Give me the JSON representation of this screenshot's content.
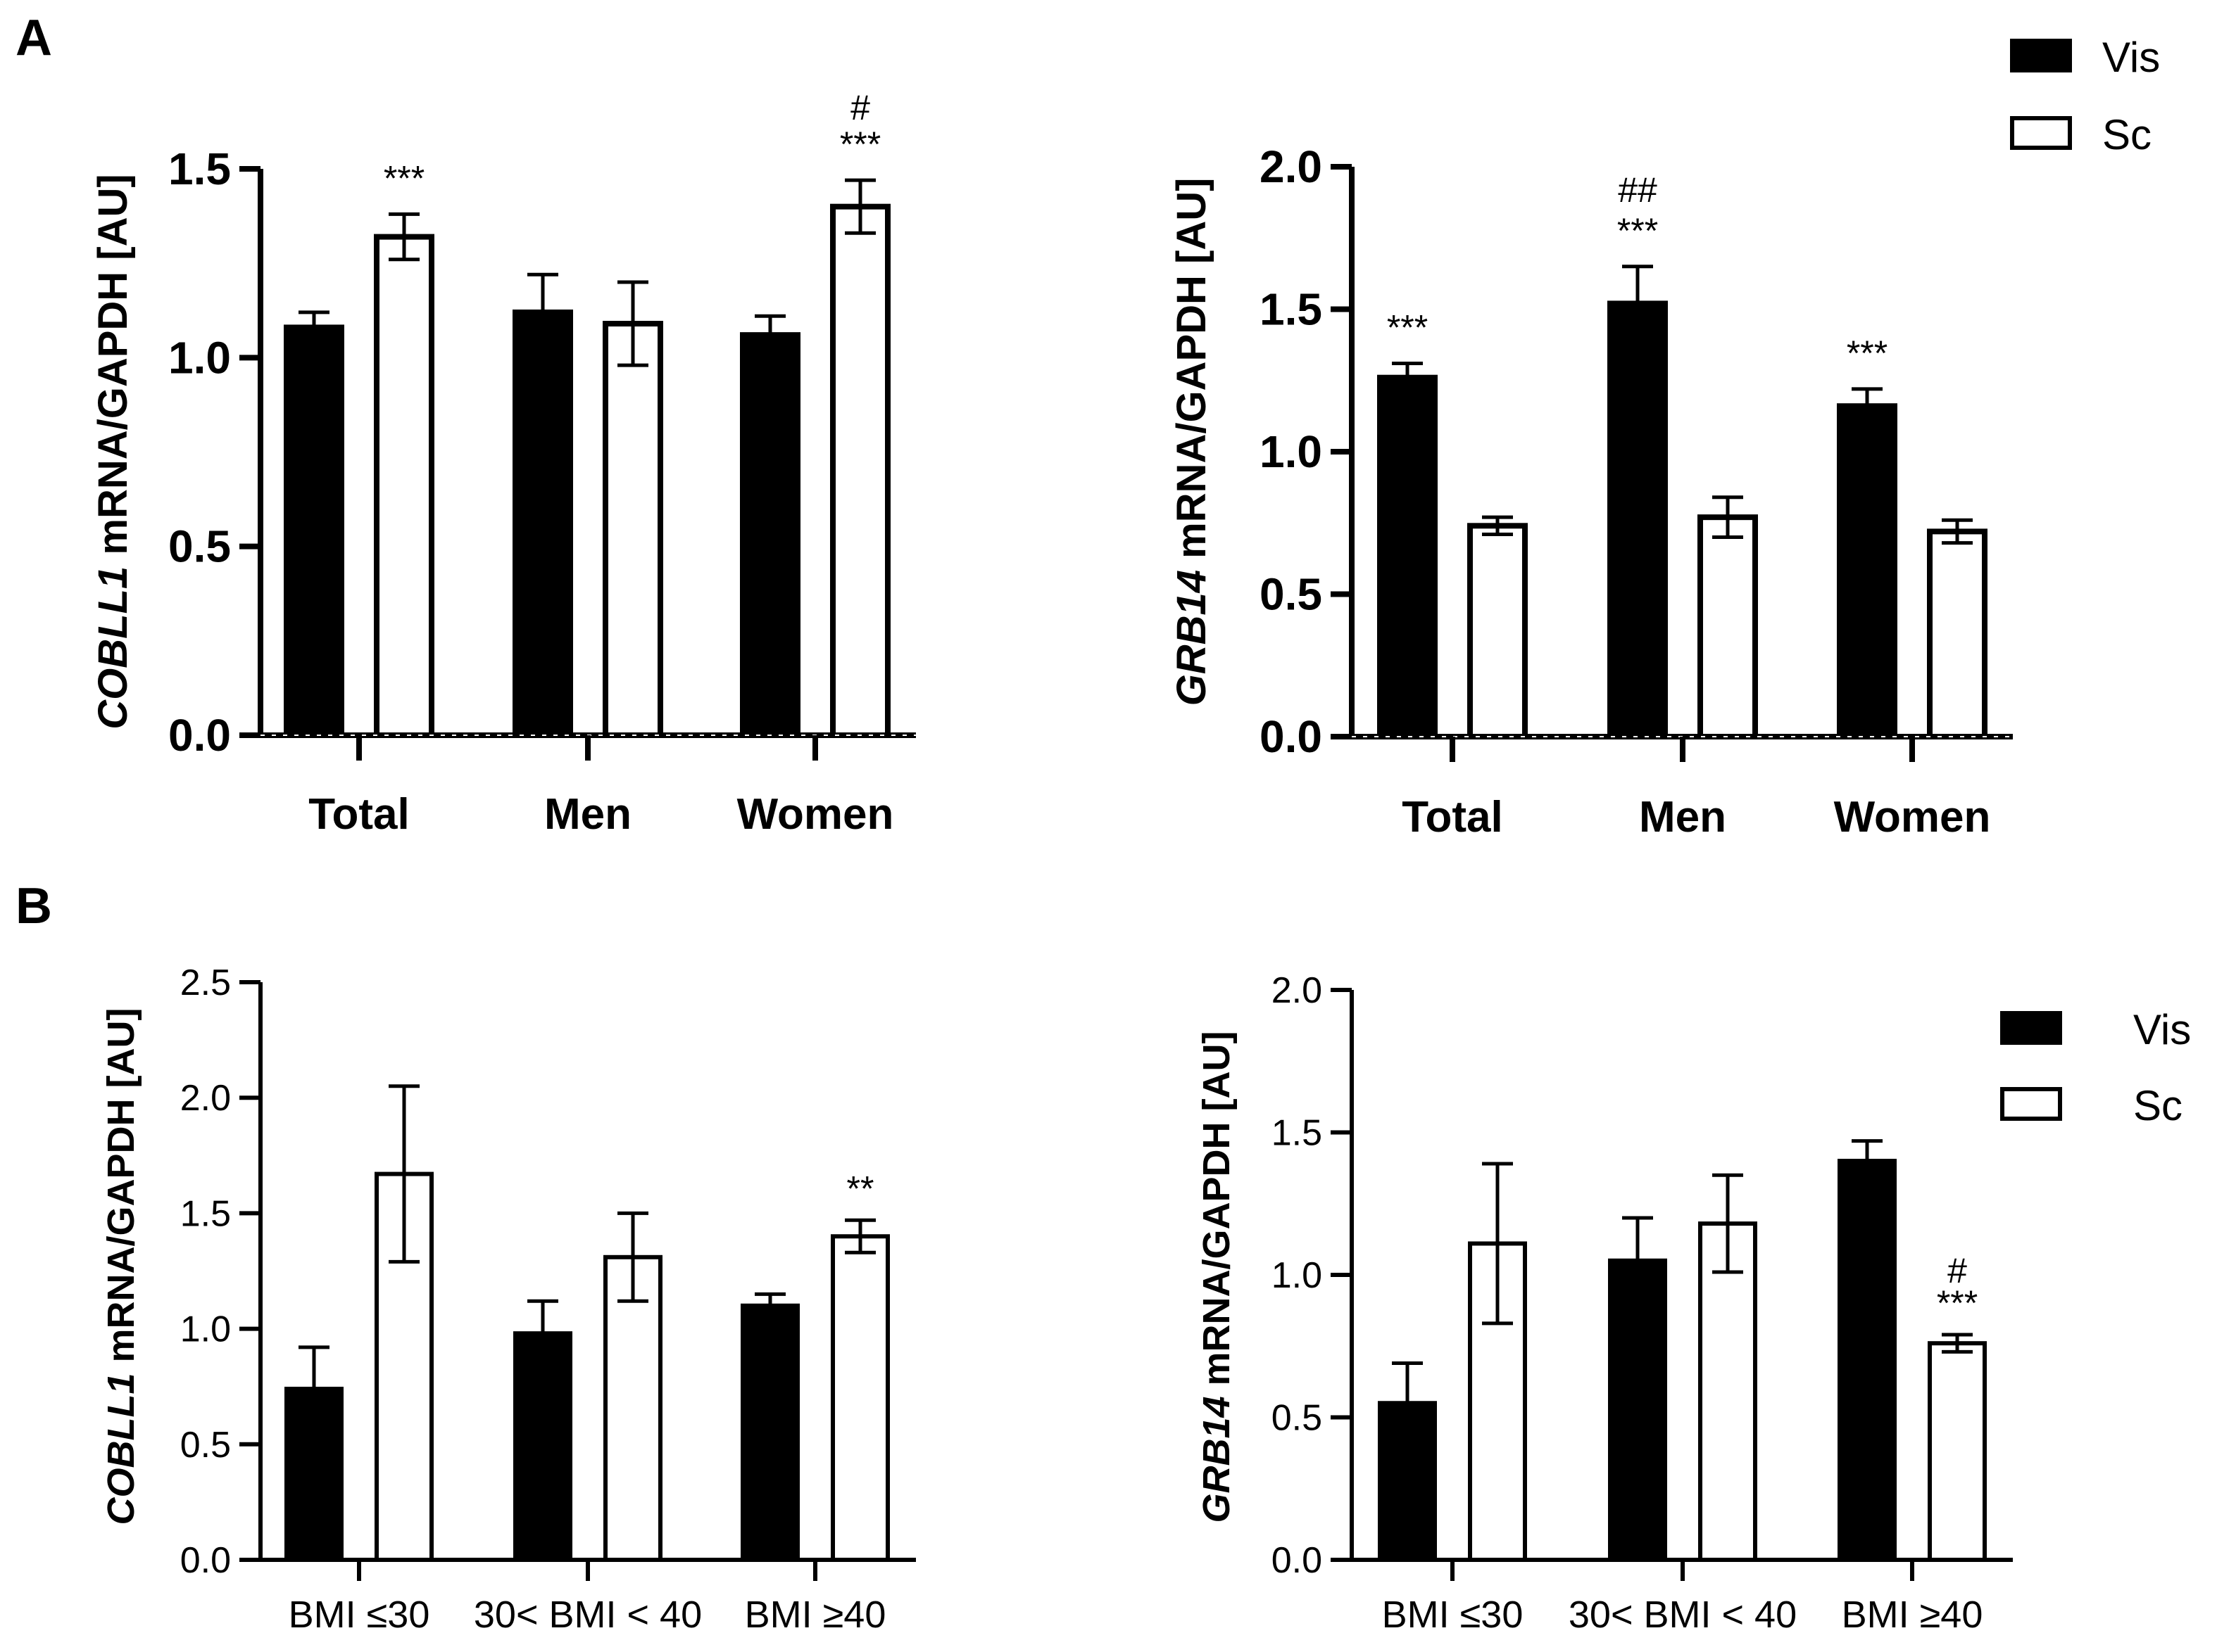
{
  "panel_labels": [
    "A",
    "B"
  ],
  "legend": [
    {
      "name": "Vis",
      "fill": "#000000"
    },
    {
      "name": "Sc",
      "fill": "#ffffff"
    }
  ],
  "colors": {
    "vis": "#000000",
    "sc": "#ffffff",
    "stroke": "#000000"
  },
  "chart_data": [
    {
      "id": "A_left",
      "type": "bar",
      "panel": "A",
      "gene": "COBLL1",
      "ylabel_rest": " mRNA/GAPDH  [AU]",
      "categories": [
        "Total",
        "Men",
        "Women"
      ],
      "ylim": [
        0,
        1.5
      ],
      "yticks": [
        "0.0",
        "0.5",
        "1.0",
        "1.5"
      ],
      "yticks_values": [
        0,
        0.5,
        1.0,
        1.5
      ],
      "series": [
        {
          "name": "Vis",
          "values": [
            1.08,
            1.12,
            1.06
          ],
          "errors": [
            0.04,
            0.1,
            0.05
          ]
        },
        {
          "name": "Sc",
          "values": [
            1.32,
            1.09,
            1.4
          ],
          "errors": [
            0.06,
            0.11,
            0.07
          ]
        }
      ],
      "annotations": [
        {
          "category": 0,
          "series": 1,
          "lines": [
            "***"
          ]
        },
        {
          "category": 2,
          "series": 1,
          "lines": [
            "#",
            "***"
          ]
        }
      ]
    },
    {
      "id": "A_right",
      "type": "bar",
      "panel": "A",
      "gene": "GRB14",
      "ylabel_rest": " mRNA/GAPDH  [AU]",
      "categories": [
        "Total",
        "Men",
        "Women"
      ],
      "ylim": [
        0,
        2.0
      ],
      "yticks": [
        "0.0",
        "0.5",
        "1.0",
        "1.5",
        "2.0"
      ],
      "yticks_values": [
        0,
        0.5,
        1.0,
        1.5,
        2.0
      ],
      "series": [
        {
          "name": "Vis",
          "values": [
            1.26,
            1.52,
            1.16
          ],
          "errors": [
            0.05,
            0.13,
            0.06
          ]
        },
        {
          "name": "Sc",
          "values": [
            0.74,
            0.77,
            0.72
          ],
          "errors": [
            0.03,
            0.07,
            0.04
          ]
        }
      ],
      "annotations": [
        {
          "category": 0,
          "series": 0,
          "lines": [
            "***"
          ]
        },
        {
          "category": 1,
          "series": 0,
          "lines": [
            "##",
            "***"
          ]
        },
        {
          "category": 2,
          "series": 0,
          "lines": [
            "***"
          ]
        }
      ]
    },
    {
      "id": "B_left",
      "type": "bar",
      "panel": "B",
      "gene": "COBLL1",
      "ylabel_rest": " mRNA/GAPDH  [AU]",
      "categories": [
        "BMI ≤30",
        "30< BMI < 40",
        "BMI ≥40"
      ],
      "ylim": [
        0,
        2.5
      ],
      "yticks": [
        "0.0",
        "0.5",
        "1.0",
        "1.5",
        "2.0",
        "2.5"
      ],
      "yticks_values": [
        0,
        0.5,
        1.0,
        1.5,
        2.0,
        2.5
      ],
      "series": [
        {
          "name": "Vis",
          "values": [
            0.74,
            0.98,
            1.1
          ],
          "errors": [
            0.18,
            0.14,
            0.05
          ]
        },
        {
          "name": "Sc",
          "values": [
            1.67,
            1.31,
            1.4
          ],
          "errors": [
            0.38,
            0.19,
            0.07
          ]
        }
      ],
      "annotations": [
        {
          "category": 2,
          "series": 1,
          "lines": [
            "**"
          ]
        }
      ]
    },
    {
      "id": "B_right",
      "type": "bar",
      "panel": "B",
      "gene": "GRB14",
      "ylabel_rest": " mRNA/GAPDH  [AU]",
      "categories": [
        "BMI ≤30",
        "30< BMI < 40",
        "BMI ≥40"
      ],
      "ylim": [
        0,
        2.0
      ],
      "yticks": [
        "0.0",
        "0.5",
        "1.0",
        "1.5",
        "2.0"
      ],
      "yticks_values": [
        0,
        0.5,
        1.0,
        1.5,
        2.0
      ],
      "series": [
        {
          "name": "Vis",
          "values": [
            0.55,
            1.05,
            1.4
          ],
          "errors": [
            0.14,
            0.15,
            0.07
          ]
        },
        {
          "name": "Sc",
          "values": [
            1.11,
            1.18,
            0.76
          ],
          "errors": [
            0.28,
            0.17,
            0.03
          ]
        }
      ],
      "annotations": [
        {
          "category": 2,
          "series": 1,
          "lines": [
            "#",
            "***"
          ]
        }
      ]
    }
  ]
}
